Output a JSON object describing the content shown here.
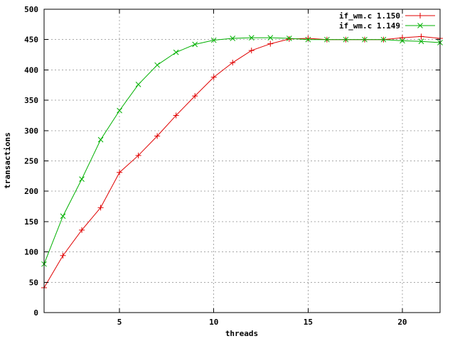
{
  "chart_data": {
    "type": "line",
    "title": "",
    "xlabel": "threads",
    "ylabel": "transactions",
    "xlim": [
      1,
      22
    ],
    "ylim": [
      0,
      500
    ],
    "xticks": [
      5,
      10,
      15,
      20
    ],
    "yticks": [
      0,
      50,
      100,
      150,
      200,
      250,
      300,
      350,
      400,
      450,
      500
    ],
    "grid": true,
    "legend_position": "top-right-inside",
    "background_color": "#ffffff",
    "axis_color": "#000000",
    "grid_color": "#a8a8a8",
    "x": [
      1,
      2,
      3,
      4,
      5,
      6,
      7,
      8,
      9,
      10,
      11,
      12,
      13,
      14,
      15,
      16,
      17,
      18,
      19,
      20,
      21,
      22
    ],
    "series": [
      {
        "name": "if_wm.c 1.150",
        "color": "#e00000",
        "marker": "plus",
        "values": [
          41,
          94,
          136,
          173,
          231,
          259,
          291,
          325,
          357,
          388,
          412,
          432,
          443,
          451,
          452,
          450,
          450,
          450,
          450,
          453,
          455,
          452
        ]
      },
      {
        "name": "if_wm.c 1.149",
        "color": "#00b000",
        "marker": "x",
        "values": [
          80,
          159,
          220,
          285,
          333,
          376,
          408,
          429,
          442,
          449,
          452,
          453,
          453,
          452,
          450,
          450,
          450,
          450,
          450,
          448,
          447,
          445
        ]
      }
    ]
  }
}
